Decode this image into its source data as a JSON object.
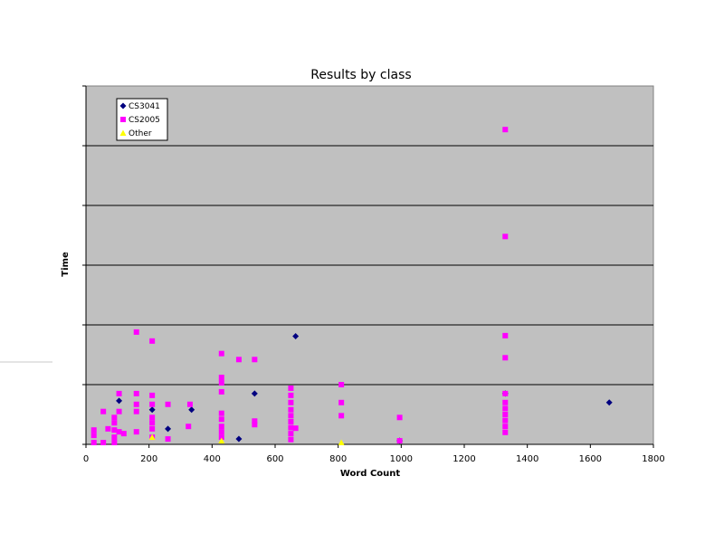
{
  "chart_data": {
    "type": "scatter",
    "title": "Results by class",
    "xlabel": "Word Count",
    "ylabel": "Time",
    "xlim": [
      0,
      1800
    ],
    "ylim": [
      0,
      6
    ],
    "xticks": [
      "0",
      "200",
      "400",
      "600",
      "800",
      "1000",
      "1200",
      "1400",
      "1600",
      "1800"
    ],
    "grid": true,
    "legend_position": "top-left",
    "colors": {
      "plot_bg": "#c0c0c0",
      "grid": "#000000"
    },
    "series": [
      {
        "name": "CS3041",
        "marker": "diamond",
        "color": "#000080",
        "points": [
          [
            105,
            0.73
          ],
          [
            210,
            0.58
          ],
          [
            260,
            0.26
          ],
          [
            335,
            0.58
          ],
          [
            485,
            0.09
          ],
          [
            535,
            0.85
          ],
          [
            665,
            1.81
          ],
          [
            995,
            0.06
          ],
          [
            1330,
            0.85
          ],
          [
            1660,
            0.7
          ]
        ]
      },
      {
        "name": "CS2005",
        "marker": "square",
        "color": "#ff00ff",
        "points": [
          [
            25,
            0.24
          ],
          [
            25,
            0.15
          ],
          [
            25,
            0.03
          ],
          [
            55,
            0.55
          ],
          [
            55,
            0.03
          ],
          [
            70,
            0.26
          ],
          [
            90,
            0.45
          ],
          [
            90,
            0.36
          ],
          [
            90,
            0.24
          ],
          [
            90,
            0.12
          ],
          [
            90,
            0.03
          ],
          [
            105,
            0.85
          ],
          [
            105,
            0.55
          ],
          [
            105,
            0.21
          ],
          [
            120,
            0.18
          ],
          [
            160,
            1.88
          ],
          [
            160,
            0.85
          ],
          [
            160,
            0.67
          ],
          [
            160,
            0.55
          ],
          [
            160,
            0.21
          ],
          [
            210,
            1.73
          ],
          [
            210,
            0.82
          ],
          [
            210,
            0.67
          ],
          [
            210,
            0.45
          ],
          [
            210,
            0.36
          ],
          [
            210,
            0.26
          ],
          [
            210,
            0.12
          ],
          [
            260,
            0.67
          ],
          [
            260,
            0.09
          ],
          [
            325,
            0.3
          ],
          [
            330,
            0.67
          ],
          [
            430,
            1.52
          ],
          [
            430,
            1.12
          ],
          [
            430,
            1.03
          ],
          [
            430,
            0.88
          ],
          [
            430,
            0.52
          ],
          [
            430,
            0.42
          ],
          [
            430,
            0.3
          ],
          [
            430,
            0.21
          ],
          [
            430,
            0.12
          ],
          [
            485,
            1.42
          ],
          [
            535,
            1.42
          ],
          [
            535,
            0.39
          ],
          [
            535,
            0.33
          ],
          [
            650,
            0.94
          ],
          [
            650,
            0.82
          ],
          [
            650,
            0.7
          ],
          [
            650,
            0.58
          ],
          [
            650,
            0.48
          ],
          [
            650,
            0.38
          ],
          [
            650,
            0.28
          ],
          [
            650,
            0.18
          ],
          [
            650,
            0.08
          ],
          [
            665,
            0.27
          ],
          [
            810,
            1.0
          ],
          [
            810,
            0.7
          ],
          [
            810,
            0.48
          ],
          [
            995,
            0.45
          ],
          [
            995,
            0.06
          ],
          [
            1330,
            5.27
          ],
          [
            1330,
            3.48
          ],
          [
            1330,
            1.82
          ],
          [
            1330,
            1.45
          ],
          [
            1330,
            0.85
          ],
          [
            1330,
            0.7
          ],
          [
            1330,
            0.6
          ],
          [
            1330,
            0.5
          ],
          [
            1330,
            0.4
          ],
          [
            1330,
            0.3
          ],
          [
            1330,
            0.2
          ]
        ]
      },
      {
        "name": "Other",
        "marker": "triangle",
        "color": "#ffff00",
        "points": [
          [
            210,
            0.12
          ],
          [
            430,
            0.06
          ],
          [
            810,
            0.03
          ]
        ]
      }
    ]
  }
}
